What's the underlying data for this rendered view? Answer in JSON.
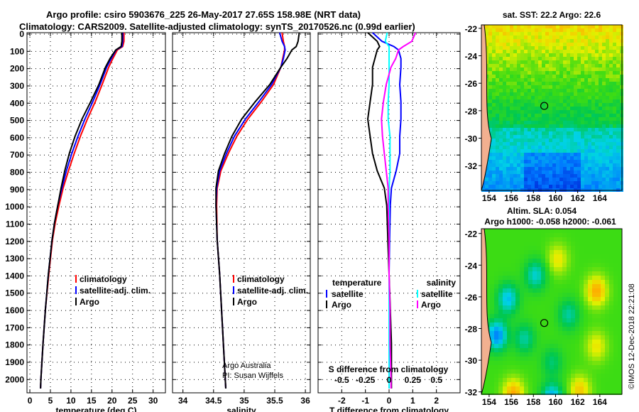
{
  "title": {
    "line1": "Argo profile: csiro 5903676_225 26-May-2017 27.65S 158.98E (NRT data)",
    "line2": "Climatology: CARS2009. Satellite-adjusted climatology: synTS_20170526.nc (0.99d earlier)"
  },
  "credit": "©IMOS 12-Dec-2018 22:21:08",
  "colors": {
    "climatology": "#ff0000",
    "satellite": "#0000ff",
    "argo": "#000000",
    "s_satellite": "#00ffff",
    "s_argo": "#ff00ff"
  },
  "chart_data": [
    {
      "type": "line",
      "id": "temperature",
      "xlabel": "temperature (deg C)",
      "ylabel": "depth",
      "xlim": [
        -0.7,
        33
      ],
      "ylim": [
        0,
        2085
      ],
      "xticks": [
        0,
        5,
        10,
        15,
        20,
        25,
        30
      ],
      "yticks": [
        0,
        100,
        200,
        300,
        400,
        500,
        600,
        700,
        800,
        900,
        1000,
        1100,
        1200,
        1300,
        1400,
        1500,
        1600,
        1700,
        1800,
        1900,
        2000
      ],
      "grid": true,
      "legend": {
        "placement": "lower-right",
        "entries": [
          "climatology",
          "satellite-adj. clim.",
          "Argo"
        ]
      },
      "depth": [
        0,
        50,
        80,
        100,
        150,
        200,
        300,
        400,
        500,
        600,
        700,
        800,
        900,
        1000,
        1100,
        1200,
        1400,
        1600,
        1800,
        2000,
        2060
      ],
      "series": [
        {
          "name": "climatology",
          "color": "#ff0000",
          "values": [
            22.9,
            22.9,
            22.6,
            21.3,
            20.2,
            19.2,
            17.6,
            15.9,
            14.0,
            12.3,
            10.8,
            9.4,
            8.1,
            7.1,
            6.2,
            5.5,
            4.6,
            3.8,
            3.2,
            2.7,
            2.6
          ]
        },
        {
          "name": "satellite-adj. clim.",
          "color": "#0000ff",
          "values": [
            22.6,
            22.6,
            22.4,
            21.0,
            19.8,
            18.7,
            17.1,
            15.3,
            13.4,
            11.7,
            10.2,
            8.9,
            7.8,
            6.8,
            6.0,
            5.4,
            4.5,
            3.8,
            3.2,
            2.7,
            2.6
          ]
        },
        {
          "name": "Argo",
          "color": "#000000",
          "values": [
            22.4,
            22.4,
            22.2,
            20.9,
            19.5,
            18.4,
            16.8,
            14.8,
            12.7,
            11.0,
            9.6,
            8.5,
            7.6,
            6.8,
            6.0,
            5.4,
            4.5,
            3.8,
            3.2,
            2.7,
            2.6
          ]
        }
      ]
    },
    {
      "type": "line",
      "id": "salinity",
      "xlabel": "salinity",
      "xlim": [
        33.83,
        36.08
      ],
      "ylim": [
        0,
        2085
      ],
      "xticks": [
        34,
        34.5,
        35,
        35.5,
        36
      ],
      "xticklabels": [
        "34",
        "34.5",
        "35",
        "35.5",
        "36"
      ],
      "grid": true,
      "legend": {
        "placement": "lower-right",
        "entries": [
          "climatology",
          "satellite-adj. clim.",
          "Argo"
        ]
      },
      "annotation": [
        "Argo Australia",
        "PI: Susan Wijffels"
      ],
      "depth": [
        0,
        50,
        80,
        100,
        150,
        200,
        300,
        400,
        500,
        600,
        700,
        800,
        900,
        1000,
        1200,
        1400,
        1600,
        1800,
        2000,
        2060
      ],
      "series": [
        {
          "name": "climatology",
          "color": "#ff0000",
          "values": [
            35.62,
            35.64,
            35.66,
            35.66,
            35.63,
            35.6,
            35.48,
            35.28,
            35.06,
            34.88,
            34.74,
            34.62,
            34.56,
            34.55,
            34.56,
            34.6,
            34.63,
            34.66,
            34.69,
            34.7
          ]
        },
        {
          "name": "satellite-adj. clim.",
          "color": "#0000ff",
          "values": [
            35.58,
            35.62,
            35.66,
            35.67,
            35.64,
            35.6,
            35.45,
            35.24,
            35.02,
            34.84,
            34.71,
            34.6,
            34.55,
            34.54,
            34.56,
            34.6,
            34.63,
            34.66,
            34.69,
            34.7
          ]
        },
        {
          "name": "Argo",
          "color": "#000000",
          "values": [
            35.9,
            35.88,
            35.85,
            35.78,
            35.7,
            35.6,
            35.42,
            35.18,
            34.96,
            34.8,
            34.68,
            34.58,
            34.54,
            34.54,
            34.56,
            34.6,
            34.63,
            34.66,
            34.69,
            34.7
          ]
        }
      ]
    },
    {
      "type": "line",
      "id": "difference",
      "xlabel": "T difference from climatology",
      "xlabel2": "S difference from climatology",
      "xlim": [
        -3,
        3
      ],
      "ylim": [
        0,
        2085
      ],
      "xticks": [
        -2,
        -1,
        0,
        1,
        2
      ],
      "xticklabels": [
        "-2",
        "-1",
        "0",
        "1",
        "2"
      ],
      "sticks": [
        -0.5,
        -0.25,
        0,
        0.25,
        0.5
      ],
      "sticklabels": [
        "-0.5",
        "-0.25",
        "0",
        "0.25",
        "0.5"
      ],
      "grid": true,
      "legend": {
        "placement": "middle",
        "temp_title": "temperature",
        "sal_title": "salinity",
        "entries": [
          "satellite",
          "Argo"
        ]
      },
      "depth": [
        0,
        50,
        80,
        100,
        150,
        200,
        300,
        400,
        500,
        600,
        700,
        800,
        900,
        1000,
        1200,
        1400,
        1600,
        1800,
        2000,
        2060
      ],
      "series": [
        {
          "name": "T satellite",
          "color": "#0000ff",
          "values": [
            -0.7,
            -0.3,
            0.2,
            0.4,
            0.5,
            0.5,
            0.45,
            0.5,
            0.5,
            0.45,
            0.45,
            0.3,
            0.1,
            0.05,
            0.02,
            0.0,
            0.0,
            0.0,
            0.0,
            0.0
          ]
        },
        {
          "name": "T Argo",
          "color": "#000000",
          "values": [
            -0.9,
            -0.5,
            -0.4,
            -0.5,
            -0.6,
            -0.7,
            -0.7,
            -0.8,
            -0.9,
            -0.8,
            -0.7,
            -0.5,
            -0.2,
            -0.1,
            -0.05,
            0.0,
            0.05,
            0.1,
            0.1,
            0.1
          ]
        },
        {
          "name": "S satellite",
          "color": "#00ffff",
          "values": [
            -0.02,
            -0.04,
            0.0,
            0.0,
            0.0,
            0.0,
            0.0,
            -0.01,
            -0.01,
            0.01,
            0.01,
            0.01,
            0.0,
            0.0,
            0.0,
            0.0,
            0.0,
            0.0,
            0.0,
            0.0
          ]
        },
        {
          "name": "S Argo",
          "color": "#ff00ff",
          "values": [
            0.28,
            0.24,
            0.15,
            0.1,
            0.07,
            0.02,
            -0.03,
            -0.06,
            -0.08,
            -0.07,
            -0.05,
            -0.03,
            -0.01,
            -0.01,
            0.0,
            0.0,
            0.01,
            0.01,
            0.02,
            0.02
          ]
        }
      ]
    }
  ],
  "maps": [
    {
      "id": "sst",
      "title": "sat. SST: 22.2 Argo: 22.6",
      "lon_ticks": [
        154,
        156,
        158,
        160,
        162,
        164
      ],
      "lat_ticks": [
        -22,
        -24,
        -26,
        -28,
        -30,
        -32
      ],
      "float_lon": 158.98,
      "float_lat": -27.65
    },
    {
      "id": "sla",
      "title1": "Altim. SLA: 0.054",
      "title2": "Argo h1000: -0.058 h2000: -0.061",
      "lon_ticks": [
        154,
        156,
        158,
        160,
        162,
        164
      ],
      "lat_ticks": [
        -22,
        -24,
        -26,
        -28,
        -30,
        -32
      ],
      "float_lon": 158.98,
      "float_lat": -27.65
    }
  ]
}
